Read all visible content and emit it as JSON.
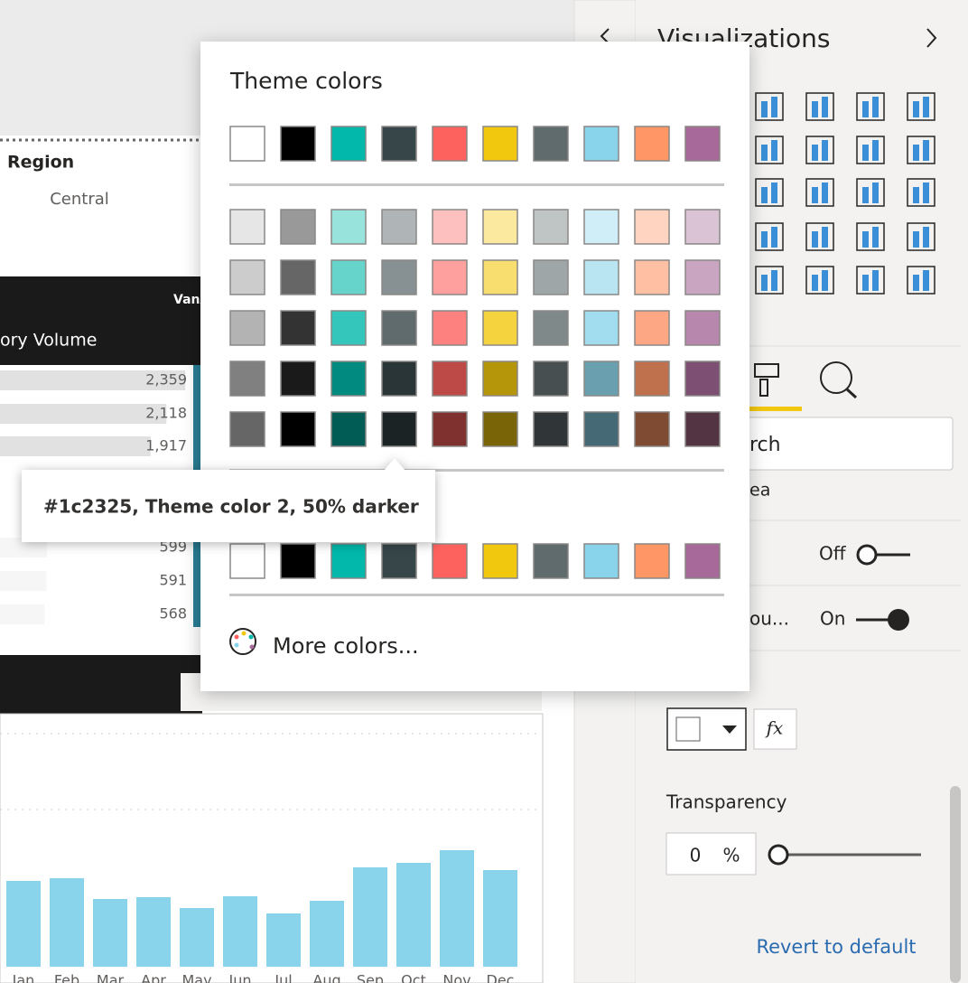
{
  "report": {
    "region_header": "Region",
    "region_value": "Central",
    "column_header_partial": "VanA",
    "measure_header": "ory Volume",
    "rows": {
      "values": [
        2359,
        2118,
        1917,
        599,
        591,
        568
      ],
      "value_labels": [
        "2,359",
        "2,118",
        "1,917",
        "599",
        "591",
        "568"
      ]
    }
  },
  "chart": {
    "categories": [
      "Jan",
      "Feb",
      "Mar",
      "Apr",
      "May",
      "Jun",
      "Jul",
      "Aug",
      "Sep",
      "Oct",
      "Nov",
      "Dec"
    ],
    "values": [
      95,
      98,
      75,
      77,
      65,
      78,
      59,
      73,
      110,
      115,
      129,
      107
    ],
    "color": "#8ad4eb"
  },
  "visualizations_pane": {
    "title": "Visualizations",
    "search_partial": "rch",
    "section_partial": "ea",
    "toggle_1_state": "Off",
    "toggle_2_label": "ou...",
    "toggle_2_state": "On",
    "fx": "fx",
    "transparency_label": "Transparency",
    "transparency_value": 0,
    "percent": "%",
    "revert": "Revert to default"
  },
  "color_picker": {
    "title": "Theme colors",
    "theme_colors": [
      "#ffffff",
      "#000000",
      "#01b8aa",
      "#374649",
      "#fd625e",
      "#f2c80f",
      "#5f6b6d",
      "#8ad4eb",
      "#fe9666",
      "#a66999"
    ],
    "shade_rows": [
      [
        "#e6e6e6",
        "#999999",
        "#99e3dd",
        "#afb5b6",
        "#fec0bf",
        "#fae99f",
        "#bfc4c5",
        "#d0eef7",
        "#ffd5c2",
        "#dbc3d6"
      ],
      [
        "#cccccc",
        "#666666",
        "#67d4cc",
        "#879092",
        "#fea19e",
        "#f7de6f",
        "#9fa6a7",
        "#b9e5f3",
        "#febfa3",
        "#caa5c2"
      ],
      [
        "#b3b3b3",
        "#333333",
        "#34c6bb",
        "#5f6b6d",
        "#fd817e",
        "#f5d33f",
        "#7f898a",
        "#a1ddef",
        "#fea785",
        "#b887ad"
      ],
      [
        "#808080",
        "#1a1a1a",
        "#018a80",
        "#293537",
        "#be4a47",
        "#b5960b",
        "#474f51",
        "#6a9fb0",
        "#bf714d",
        "#7d4f73"
      ],
      [
        "#666666",
        "#000000",
        "#005c55",
        "#1c2325",
        "#7f312f",
        "#796408",
        "#303637",
        "#456a76",
        "#804b33",
        "#533443"
      ]
    ],
    "recent_colors": [
      "#ffffff",
      "#000000",
      "#01b8aa",
      "#374649",
      "#fd625e",
      "#f2c80f",
      "#5f6b6d",
      "#8ad4eb",
      "#fe9666",
      "#a66999"
    ],
    "more_colors": "More colors...",
    "tooltip": "#1c2325, Theme color 2, 50% darker"
  }
}
